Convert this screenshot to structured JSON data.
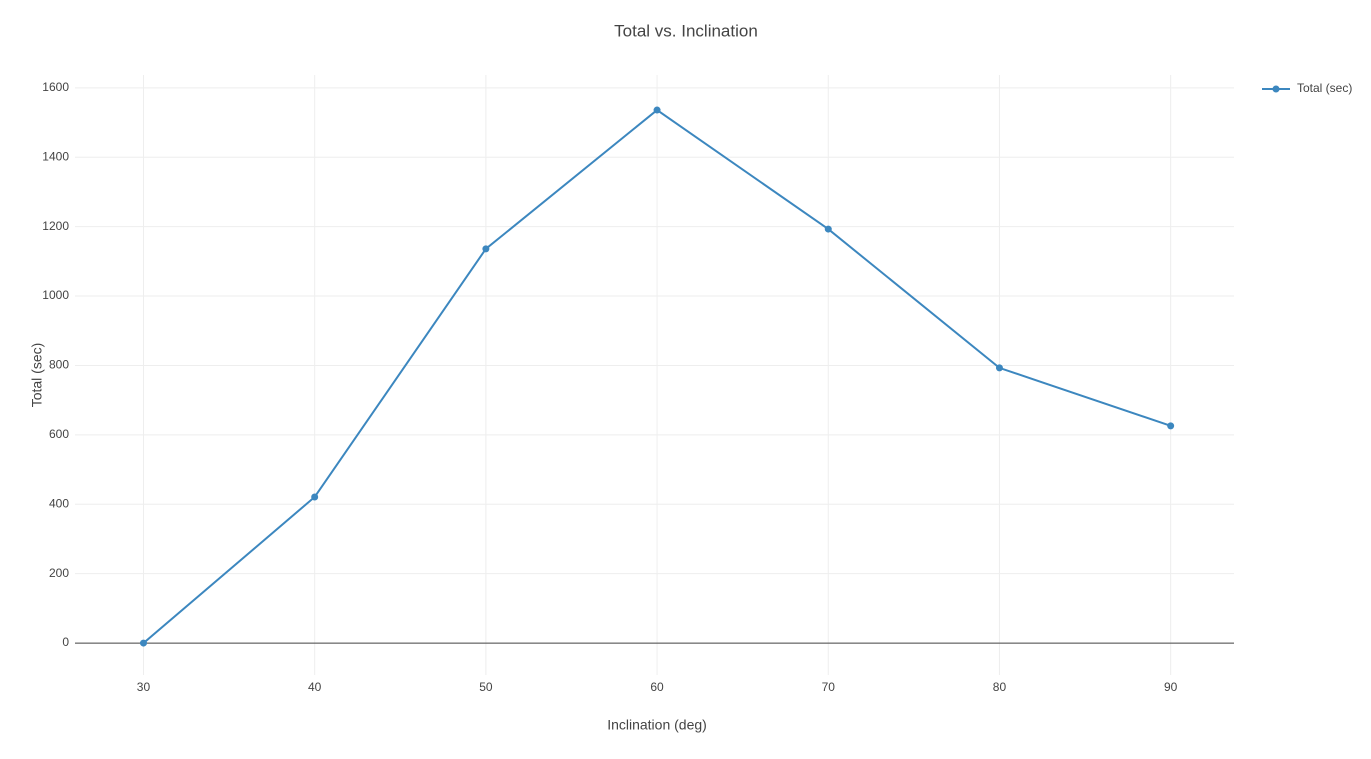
{
  "chart_data": {
    "type": "line",
    "title": "Total vs. Inclination",
    "x_label": "Inclination (deg)",
    "y_label": "Total (sec)",
    "x": [
      30,
      40,
      50,
      60,
      70,
      80,
      90
    ],
    "series": [
      {
        "name": "Total (sec)",
        "color": "#3c87bf",
        "values": [
          0,
          421,
          1136,
          1536,
          1193,
          793,
          626
        ]
      }
    ],
    "xlim": [
      26,
      93.7
    ],
    "ylim": [
      -92,
      1637
    ],
    "xticks": [
      30,
      40,
      50,
      60,
      70,
      80,
      90
    ],
    "yticks": [
      0,
      200,
      400,
      600,
      800,
      1000,
      1200,
      1400,
      1600
    ],
    "grid": true,
    "zeroline": true,
    "legend": "top-right",
    "markers": true
  }
}
